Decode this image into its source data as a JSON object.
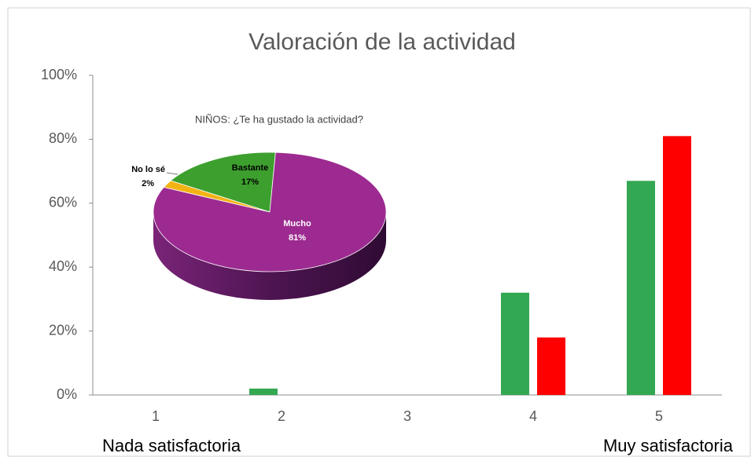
{
  "chart_data": [
    {
      "type": "bar",
      "title": "Valoración de la actividad",
      "categories": [
        "1",
        "2",
        "3",
        "4",
        "5"
      ],
      "series": [
        {
          "color": "#33a852",
          "values": [
            0,
            2,
            0,
            32,
            67
          ]
        },
        {
          "color": "#ff0000",
          "values": [
            0,
            0,
            0,
            18,
            81
          ]
        }
      ],
      "ylim": [
        0,
        100
      ],
      "yticks": [
        {
          "value": 0,
          "label": "0%"
        },
        {
          "value": 20,
          "label": "20%"
        },
        {
          "value": 40,
          "label": "40%"
        },
        {
          "value": 60,
          "label": "60%"
        },
        {
          "value": 80,
          "label": "80%"
        },
        {
          "value": 100,
          "label": "100%"
        }
      ],
      "grid": false,
      "annotations": [
        "Nada satisfactoria",
        "Muy satisfactoria"
      ]
    },
    {
      "type": "pie",
      "title": "NIÑOS: ¿Te ha gustado la actividad?",
      "categories": [
        "Bastante",
        "No lo sé",
        "Mucho"
      ],
      "values": [
        17,
        2,
        81
      ],
      "value_labels": [
        "17%",
        "2%",
        "81%"
      ],
      "colors": [
        "#3d9f2e",
        "#f2b315",
        "#9c2a90"
      ],
      "three_d": true
    }
  ]
}
